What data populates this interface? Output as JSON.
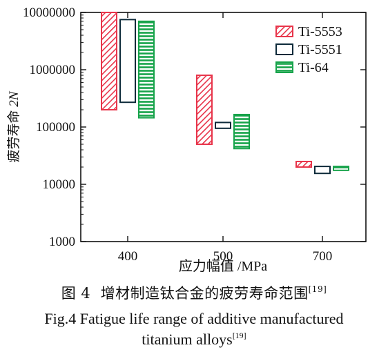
{
  "chart_data": {
    "type": "range-bar",
    "title": "",
    "xlabel": "应力幅值 /MPa",
    "ylabel_cn": "疲劳寿命",
    "ylabel_var": "2N",
    "y_scale": "log",
    "ylim": [
      1000,
      10000000
    ],
    "yticks": [
      1000,
      10000,
      100000,
      1000000,
      10000000
    ],
    "ytick_labels": [
      "1000",
      "10000",
      "100000",
      "1000000",
      "10000000"
    ],
    "categories": [
      "400",
      "500",
      "700"
    ],
    "legend_position": "top-right",
    "series": [
      {
        "name": "Ti-5553",
        "pattern": "hatched",
        "color": "#e8344a",
        "ranges": [
          [
            200000,
            10000000
          ],
          [
            50000,
            800000
          ],
          [
            20000,
            25000
          ]
        ]
      },
      {
        "name": "Ti-5551",
        "pattern": "hollow",
        "color": "#0d2a3a",
        "ranges": [
          [
            270000,
            7500000
          ],
          [
            95000,
            120000
          ],
          [
            15500,
            20500
          ]
        ]
      },
      {
        "name": "Ti-64",
        "pattern": "hatched",
        "color": "#16a34a",
        "ranges": [
          [
            145000,
            7000000
          ],
          [
            42000,
            165000
          ],
          [
            17500,
            20500
          ]
        ]
      }
    ]
  },
  "caption": {
    "cn_label": "图 4",
    "cn_text": "增材制造钛合金的疲劳寿命范围",
    "cn_ref": "[19]",
    "en_line1": "Fig.4  Fatigue life range of additive manufactured",
    "en_line2": "titanium alloys",
    "en_ref": "[19]"
  }
}
